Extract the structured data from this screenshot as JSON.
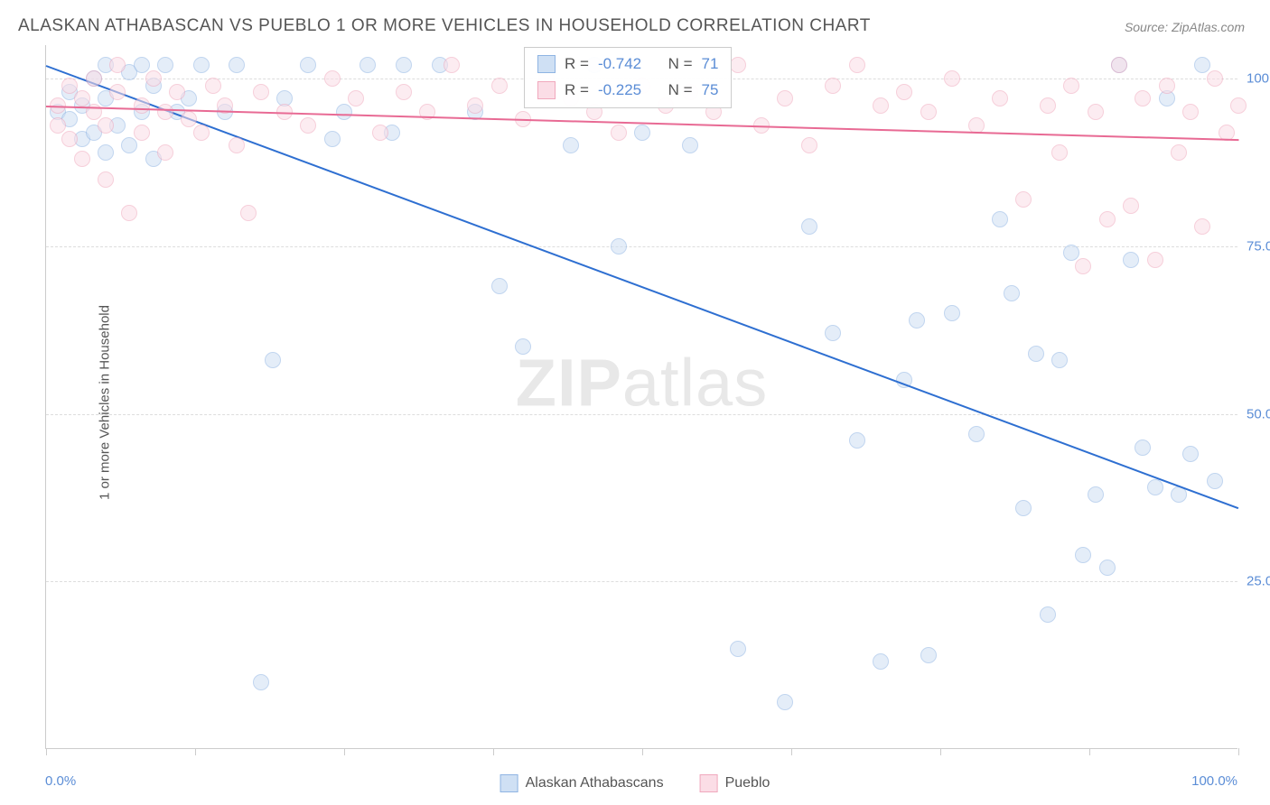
{
  "chart": {
    "type": "scatter",
    "title": "ALASKAN ATHABASCAN VS PUEBLO 1 OR MORE VEHICLES IN HOUSEHOLD CORRELATION CHART",
    "source": "Source: ZipAtlas.com",
    "ylabel": "1 or more Vehicles in Household",
    "watermark_zip": "ZIP",
    "watermark_atlas": "atlas",
    "xlim": [
      0,
      100
    ],
    "ylim": [
      0,
      105
    ],
    "xaxis_min_label": "0.0%",
    "xaxis_max_label": "100.0%",
    "ytick_labels": [
      "25.0%",
      "50.0%",
      "75.0%",
      "100.0%"
    ],
    "ytick_values": [
      25,
      50,
      75,
      100
    ],
    "xtick_values": [
      0,
      12.5,
      25,
      37.5,
      50,
      62.5,
      75,
      87.5,
      100
    ],
    "background_color": "#ffffff",
    "grid_color": "#dddddd",
    "title_color": "#555555",
    "title_fontsize": 19,
    "label_fontsize": 15,
    "tick_color": "#5b8dd6",
    "marker_radius": 9,
    "marker_opacity": 0.55,
    "line_width": 2,
    "series": [
      {
        "name": "Alaskan Athabascans",
        "color": "#8fb4e3",
        "fill": "#cfe0f4",
        "line_color": "#2e6fd1",
        "R": "-0.742",
        "N": "71",
        "trend": {
          "x1": 0,
          "y1": 102,
          "x2": 100,
          "y2": 36
        },
        "points": [
          [
            1,
            95
          ],
          [
            2,
            94
          ],
          [
            2,
            98
          ],
          [
            3,
            91
          ],
          [
            3,
            96
          ],
          [
            4,
            92
          ],
          [
            4,
            100
          ],
          [
            5,
            89
          ],
          [
            5,
            97
          ],
          [
            5,
            102
          ],
          [
            6,
            93
          ],
          [
            7,
            90
          ],
          [
            7,
            101
          ],
          [
            8,
            95
          ],
          [
            8,
            102
          ],
          [
            9,
            88
          ],
          [
            9,
            99
          ],
          [
            10,
            102
          ],
          [
            11,
            95
          ],
          [
            12,
            97
          ],
          [
            13,
            102
          ],
          [
            15,
            95
          ],
          [
            16,
            102
          ],
          [
            18,
            10
          ],
          [
            19,
            58
          ],
          [
            20,
            97
          ],
          [
            22,
            102
          ],
          [
            24,
            91
          ],
          [
            25,
            95
          ],
          [
            27,
            102
          ],
          [
            29,
            92
          ],
          [
            30,
            102
          ],
          [
            33,
            102
          ],
          [
            36,
            95
          ],
          [
            38,
            69
          ],
          [
            40,
            60
          ],
          [
            44,
            90
          ],
          [
            46,
            102
          ],
          [
            48,
            75
          ],
          [
            50,
            92
          ],
          [
            54,
            90
          ],
          [
            58,
            15
          ],
          [
            62,
            7
          ],
          [
            64,
            78
          ],
          [
            66,
            62
          ],
          [
            68,
            46
          ],
          [
            70,
            13
          ],
          [
            72,
            55
          ],
          [
            73,
            64
          ],
          [
            74,
            14
          ],
          [
            76,
            65
          ],
          [
            78,
            47
          ],
          [
            80,
            79
          ],
          [
            81,
            68
          ],
          [
            82,
            36
          ],
          [
            83,
            59
          ],
          [
            84,
            20
          ],
          [
            85,
            58
          ],
          [
            86,
            74
          ],
          [
            87,
            29
          ],
          [
            88,
            38
          ],
          [
            89,
            27
          ],
          [
            90,
            102
          ],
          [
            91,
            73
          ],
          [
            92,
            45
          ],
          [
            93,
            39
          ],
          [
            94,
            97
          ],
          [
            95,
            38
          ],
          [
            96,
            44
          ],
          [
            97,
            102
          ],
          [
            98,
            40
          ]
        ]
      },
      {
        "name": "Pueblo",
        "color": "#f0a8bd",
        "fill": "#fbdde6",
        "line_color": "#e86a94",
        "R": "-0.225",
        "N": "75",
        "trend": {
          "x1": 0,
          "y1": 96,
          "x2": 100,
          "y2": 91
        },
        "points": [
          [
            1,
            96
          ],
          [
            1,
            93
          ],
          [
            2,
            99
          ],
          [
            2,
            91
          ],
          [
            3,
            88
          ],
          [
            3,
            97
          ],
          [
            4,
            95
          ],
          [
            4,
            100
          ],
          [
            5,
            85
          ],
          [
            5,
            93
          ],
          [
            6,
            98
          ],
          [
            6,
            102
          ],
          [
            7,
            80
          ],
          [
            8,
            96
          ],
          [
            8,
            92
          ],
          [
            9,
            100
          ],
          [
            10,
            95
          ],
          [
            10,
            89
          ],
          [
            11,
            98
          ],
          [
            12,
            94
          ],
          [
            13,
            92
          ],
          [
            14,
            99
          ],
          [
            15,
            96
          ],
          [
            16,
            90
          ],
          [
            17,
            80
          ],
          [
            18,
            98
          ],
          [
            20,
            95
          ],
          [
            22,
            93
          ],
          [
            24,
            100
          ],
          [
            26,
            97
          ],
          [
            28,
            92
          ],
          [
            30,
            98
          ],
          [
            32,
            95
          ],
          [
            34,
            102
          ],
          [
            36,
            96
          ],
          [
            38,
            99
          ],
          [
            40,
            94
          ],
          [
            42,
            100
          ],
          [
            44,
            97
          ],
          [
            46,
            95
          ],
          [
            48,
            92
          ],
          [
            50,
            99
          ],
          [
            52,
            96
          ],
          [
            54,
            98
          ],
          [
            56,
            95
          ],
          [
            58,
            102
          ],
          [
            60,
            93
          ],
          [
            62,
            97
          ],
          [
            64,
            90
          ],
          [
            66,
            99
          ],
          [
            68,
            102
          ],
          [
            70,
            96
          ],
          [
            72,
            98
          ],
          [
            74,
            95
          ],
          [
            76,
            100
          ],
          [
            78,
            93
          ],
          [
            80,
            97
          ],
          [
            82,
            82
          ],
          [
            84,
            96
          ],
          [
            85,
            89
          ],
          [
            86,
            99
          ],
          [
            87,
            72
          ],
          [
            88,
            95
          ],
          [
            89,
            79
          ],
          [
            90,
            102
          ],
          [
            91,
            81
          ],
          [
            92,
            97
          ],
          [
            93,
            73
          ],
          [
            94,
            99
          ],
          [
            95,
            89
          ],
          [
            96,
            95
          ],
          [
            97,
            78
          ],
          [
            98,
            100
          ],
          [
            99,
            92
          ],
          [
            100,
            96
          ]
        ]
      }
    ],
    "stats_labels": {
      "r_prefix": "R =",
      "n_prefix": "N ="
    },
    "legend_labels": [
      "Alaskan Athabascans",
      "Pueblo"
    ]
  }
}
